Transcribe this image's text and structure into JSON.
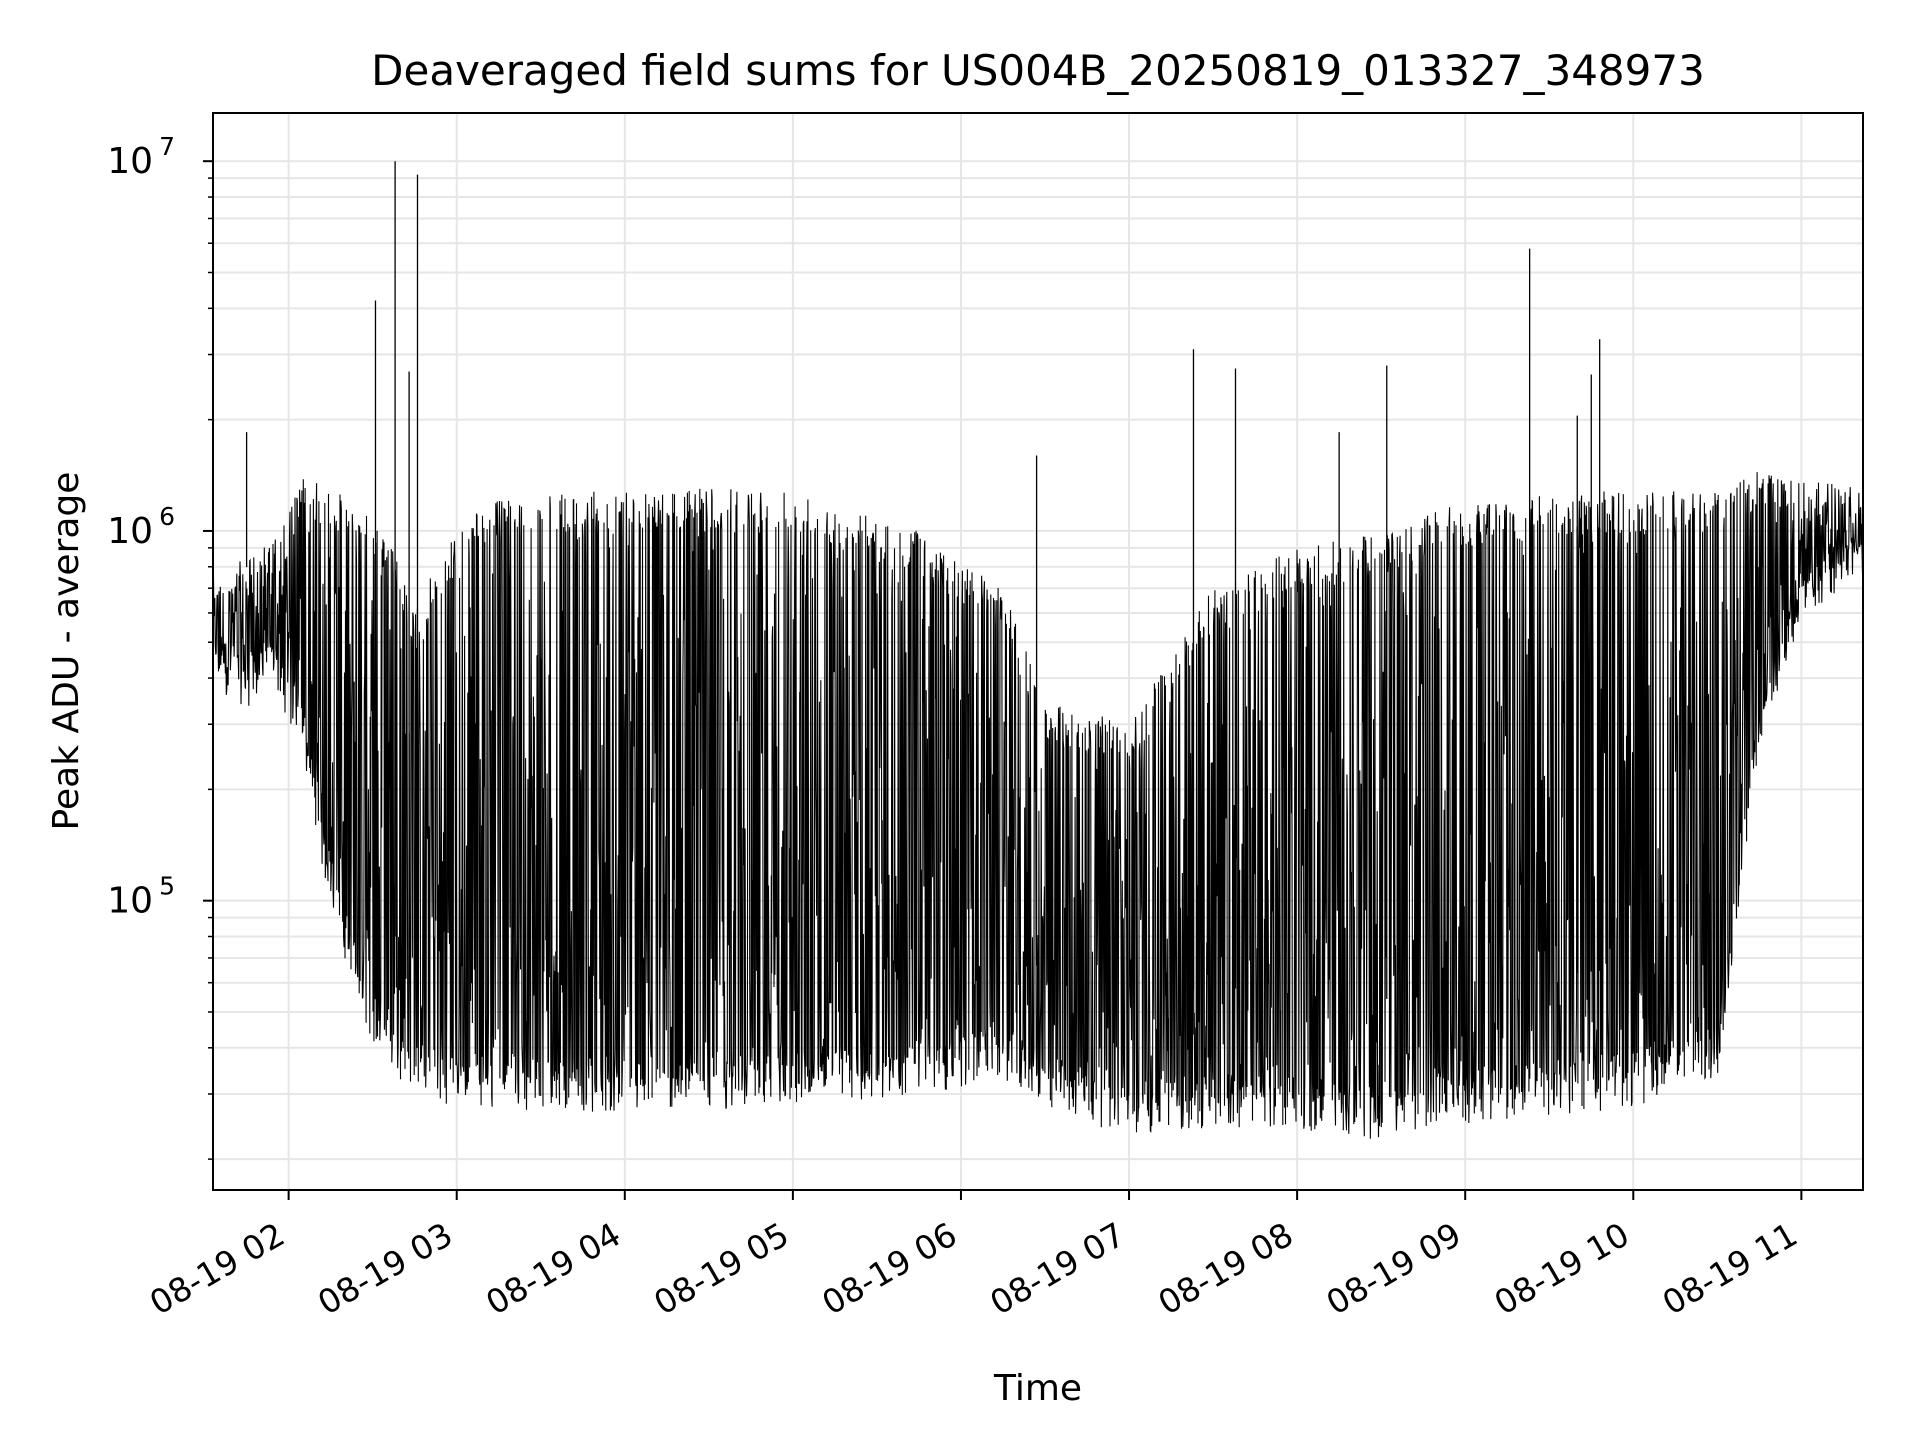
{
  "chart_data": {
    "type": "line",
    "title": "Deaveraged field sums for US004B_20250819_013327_348973",
    "xlabel": "Time",
    "ylabel": "Peak ADU - average",
    "yscale": "log",
    "grid": true,
    "line_color": "#000000",
    "grid_color": "#e6e6e6",
    "xlim": [
      "2025-08-19 01:33",
      "2025-08-19 11:22"
    ],
    "ylim": [
      16500,
      13500000
    ],
    "x_ticks": [
      {
        "value": "2025-08-19 02:00",
        "label": "08-19 02"
      },
      {
        "value": "2025-08-19 03:00",
        "label": "08-19 03"
      },
      {
        "value": "2025-08-19 04:00",
        "label": "08-19 04"
      },
      {
        "value": "2025-08-19 05:00",
        "label": "08-19 05"
      },
      {
        "value": "2025-08-19 06:00",
        "label": "08-19 06"
      },
      {
        "value": "2025-08-19 07:00",
        "label": "08-19 07"
      },
      {
        "value": "2025-08-19 08:00",
        "label": "08-19 08"
      },
      {
        "value": "2025-08-19 09:00",
        "label": "08-19 09"
      },
      {
        "value": "2025-08-19 10:00",
        "label": "08-19 10"
      },
      {
        "value": "2025-08-19 11:00",
        "label": "08-19 11"
      }
    ],
    "y_ticks": [
      {
        "value": 100000,
        "base": "10",
        "exp": "5"
      },
      {
        "value": 1000000,
        "base": "10",
        "exp": "6"
      },
      {
        "value": 10000000,
        "base": "10",
        "exp": "7"
      }
    ],
    "envelope": [
      {
        "t": "2025-08-19 01:33",
        "low": 450000,
        "high": 750000
      },
      {
        "t": "2025-08-19 01:45",
        "low": 400000,
        "high": 850000
      },
      {
        "t": "2025-08-19 01:55",
        "low": 450000,
        "high": 950000
      },
      {
        "t": "2025-08-19 02:05",
        "low": 300000,
        "high": 1400000
      },
      {
        "t": "2025-08-19 02:15",
        "low": 110000,
        "high": 1300000
      },
      {
        "t": "2025-08-19 02:25",
        "low": 60000,
        "high": 1200000
      },
      {
        "t": "2025-08-19 02:35",
        "low": 42000,
        "high": 1000000
      },
      {
        "t": "2025-08-19 02:45",
        "low": 36000,
        "high": 600000
      },
      {
        "t": "2025-08-19 02:55",
        "low": 34000,
        "high": 900000
      },
      {
        "t": "2025-08-19 03:10",
        "low": 33000,
        "high": 1200000
      },
      {
        "t": "2025-08-19 04:00",
        "low": 32000,
        "high": 1300000
      },
      {
        "t": "2025-08-19 05:00",
        "low": 33000,
        "high": 1300000
      },
      {
        "t": "2025-08-19 05:45",
        "low": 35000,
        "high": 1000000
      },
      {
        "t": "2025-08-19 06:15",
        "low": 40000,
        "high": 700000
      },
      {
        "t": "2025-08-19 06:30",
        "low": 32000,
        "high": 350000
      },
      {
        "t": "2025-08-19 07:00",
        "low": 28000,
        "high": 300000
      },
      {
        "t": "2025-08-19 07:30",
        "low": 29000,
        "high": 700000
      },
      {
        "t": "2025-08-19 08:00",
        "low": 29000,
        "high": 900000
      },
      {
        "t": "2025-08-19 08:30",
        "low": 27000,
        "high": 1000000
      },
      {
        "t": "2025-08-19 09:00",
        "low": 30000,
        "high": 1200000
      },
      {
        "t": "2025-08-19 10:00",
        "low": 33000,
        "high": 1300000
      },
      {
        "t": "2025-08-19 10:30",
        "low": 40000,
        "high": 1300000
      },
      {
        "t": "2025-08-19 10:45",
        "low": 300000,
        "high": 1500000
      },
      {
        "t": "2025-08-19 11:00",
        "low": 700000,
        "high": 1400000
      },
      {
        "t": "2025-08-19 11:22",
        "low": 900000,
        "high": 1300000
      }
    ],
    "spikes": [
      {
        "t": "2025-08-19 01:45",
        "value": 1850000
      },
      {
        "t": "2025-08-19 02:31",
        "value": 4200000
      },
      {
        "t": "2025-08-19 02:38",
        "value": 10000000
      },
      {
        "t": "2025-08-19 02:46",
        "value": 9200000
      },
      {
        "t": "2025-08-19 02:43",
        "value": 2700000
      },
      {
        "t": "2025-08-19 06:27",
        "value": 1600000
      },
      {
        "t": "2025-08-19 07:23",
        "value": 3100000
      },
      {
        "t": "2025-08-19 07:38",
        "value": 2750000
      },
      {
        "t": "2025-08-19 08:15",
        "value": 1850000
      },
      {
        "t": "2025-08-19 08:32",
        "value": 2800000
      },
      {
        "t": "2025-08-19 09:23",
        "value": 5800000
      },
      {
        "t": "2025-08-19 09:45",
        "value": 2650000
      },
      {
        "t": "2025-08-19 09:48",
        "value": 3300000
      },
      {
        "t": "2025-08-19 09:40",
        "value": 2050000
      }
    ]
  }
}
